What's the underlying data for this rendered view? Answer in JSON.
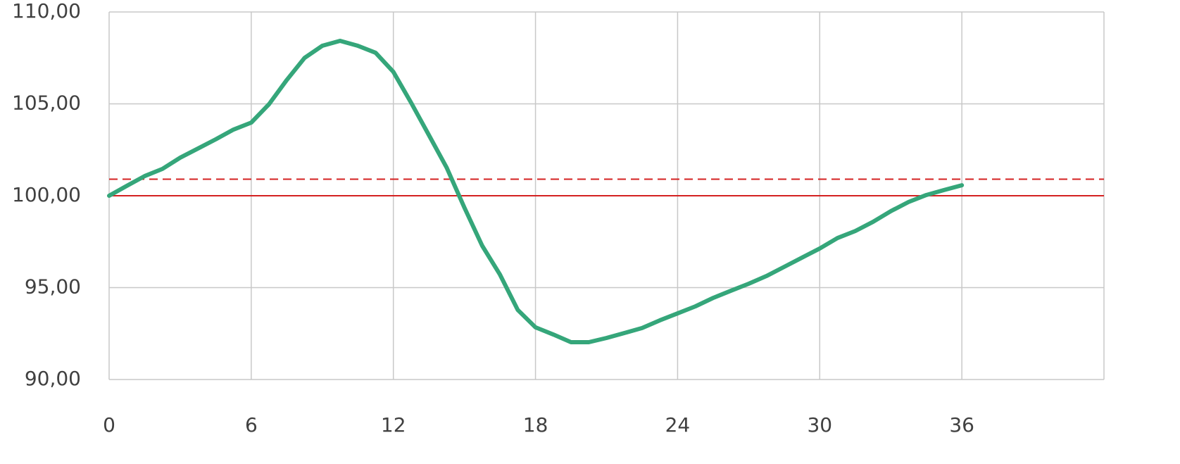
{
  "chart_data": {
    "type": "line",
    "x": [
      0,
      0.75,
      1.5,
      2.25,
      3,
      3.75,
      4.5,
      5.25,
      6,
      6.75,
      7.5,
      8.25,
      9,
      9.75,
      10.5,
      11.25,
      12,
      12.75,
      13.5,
      14.25,
      15,
      15.75,
      16.5,
      17.25,
      18,
      18.75,
      19.5,
      20.25,
      21,
      21.75,
      22.5,
      23.25,
      24,
      24.75,
      25.5,
      26.25,
      27,
      27.75,
      28.5,
      29.25,
      30,
      30.75,
      31.5,
      32.25,
      33,
      33.75,
      34.5,
      35.25,
      36
    ],
    "series": [
      {
        "color": "#35a67a",
        "values": [
          100.0,
          100.54,
          101.07,
          101.46,
          102.07,
          102.57,
          103.07,
          103.6,
          103.98,
          104.98,
          106.3,
          107.5,
          108.16,
          108.43,
          108.16,
          107.78,
          106.74,
          105.06,
          103.3,
          101.53,
          99.35,
          97.28,
          95.71,
          93.79,
          92.84,
          92.45,
          92.03,
          92.03,
          92.26,
          92.53,
          92.8,
          93.22,
          93.6,
          93.98,
          94.44,
          94.83,
          95.21,
          95.63,
          96.13,
          96.63,
          97.13,
          97.7,
          98.08,
          98.58,
          99.16,
          99.66,
          100.04,
          100.31,
          100.57
        ]
      }
    ],
    "reference_lines": [
      {
        "value": 100,
        "color": "#d42020",
        "style": "solid"
      },
      {
        "value": 100.9,
        "color": "#d42020",
        "style": "dashed"
      }
    ],
    "xlim": [
      0,
      42
    ],
    "xticks": [
      0,
      6,
      12,
      18,
      24,
      30,
      36
    ],
    "ylim": [
      90,
      110
    ],
    "yticks": [
      {
        "value": 90,
        "label": "90,00"
      },
      {
        "value": 95,
        "label": "95,00"
      },
      {
        "value": 100,
        "label": "100,00"
      },
      {
        "value": 105,
        "label": "105,00"
      },
      {
        "value": 110,
        "label": "110,00"
      }
    ],
    "grid": true
  }
}
